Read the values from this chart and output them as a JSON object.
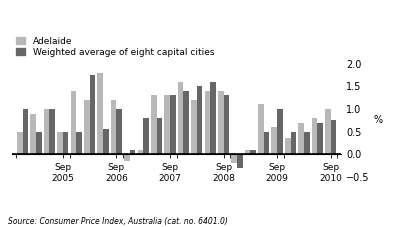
{
  "adelaide": [
    0.5,
    0.9,
    1.0,
    0.5,
    1.4,
    1.2,
    1.8,
    1.2,
    -0.15,
    0.1,
    1.3,
    1.3,
    1.6,
    1.2,
    1.4,
    1.4,
    -0.2,
    0.1,
    1.1,
    0.6,
    0.35,
    0.7,
    0.8,
    1.0
  ],
  "weighted": [
    1.0,
    0.5,
    1.0,
    0.5,
    0.5,
    1.75,
    0.55,
    1.0,
    0.1,
    0.8,
    0.8,
    1.3,
    1.4,
    1.5,
    1.6,
    1.3,
    -0.3,
    0.1,
    0.5,
    1.0,
    0.5,
    0.5,
    0.7,
    0.75
  ],
  "sep_years": [
    2005,
    2006,
    2007,
    2008,
    2009,
    2010
  ],
  "sep_positions": [
    3,
    7,
    11,
    15,
    19,
    23
  ],
  "color_adelaide": "#b8b8b8",
  "color_weighted": "#666666",
  "ylabel": "%",
  "ylim": [
    -0.5,
    2.0
  ],
  "yticks": [
    -0.5,
    0.0,
    0.5,
    1.0,
    1.5,
    2.0
  ],
  "source": "Source: Consumer Price Index, Australia (cat. no. 6401.0)",
  "legend_adelaide": "Adelaide",
  "legend_weighted": "Weighted average of eight capital cities"
}
